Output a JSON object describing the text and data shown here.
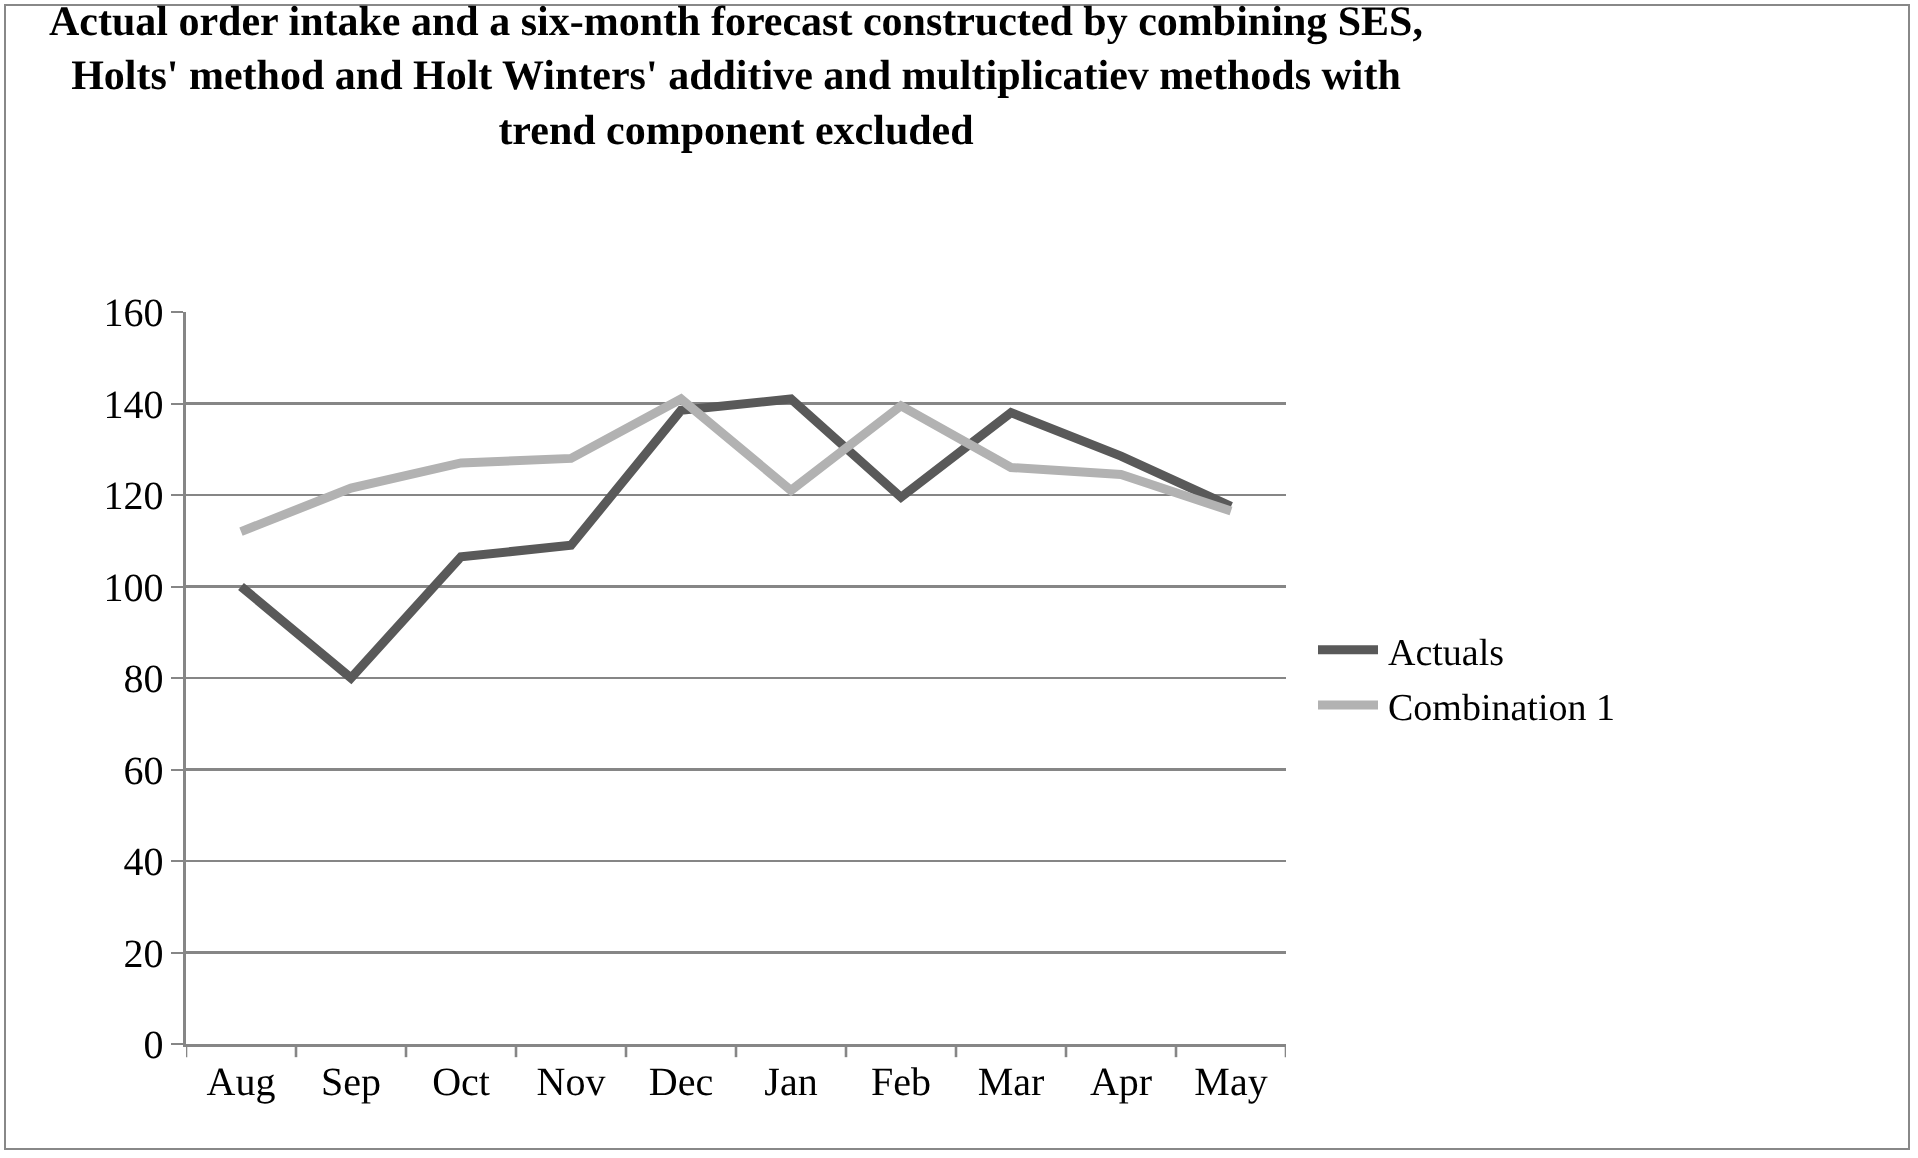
{
  "chart_data": {
    "type": "line",
    "title": "Actual order intake and a six-month forecast constructed by combining SES, Holts' method and Holt Winters' additive and multiplicatiev methods with trend component excluded",
    "categories": [
      "Aug",
      "Sep",
      "Oct",
      "Nov",
      "Dec",
      "Jan",
      "Feb",
      "Mar",
      "Apr",
      "May"
    ],
    "series": [
      {
        "name": "Actuals",
        "color": "#595959",
        "values": [
          100,
          80,
          106.5,
          109,
          138.5,
          141,
          119.5,
          138,
          128.5,
          117.5
        ]
      },
      {
        "name": "Combination 1",
        "color": "#b2b2b2",
        "values": [
          112,
          121.5,
          127,
          128,
          141,
          121,
          139.5,
          126,
          124.5,
          116.5
        ]
      }
    ],
    "ylim": [
      0,
      160
    ],
    "yticks": [
      0,
      20,
      40,
      60,
      80,
      100,
      120,
      140,
      160
    ],
    "grid": "y",
    "legend": "right",
    "marker": "none",
    "line_style": "solid"
  }
}
